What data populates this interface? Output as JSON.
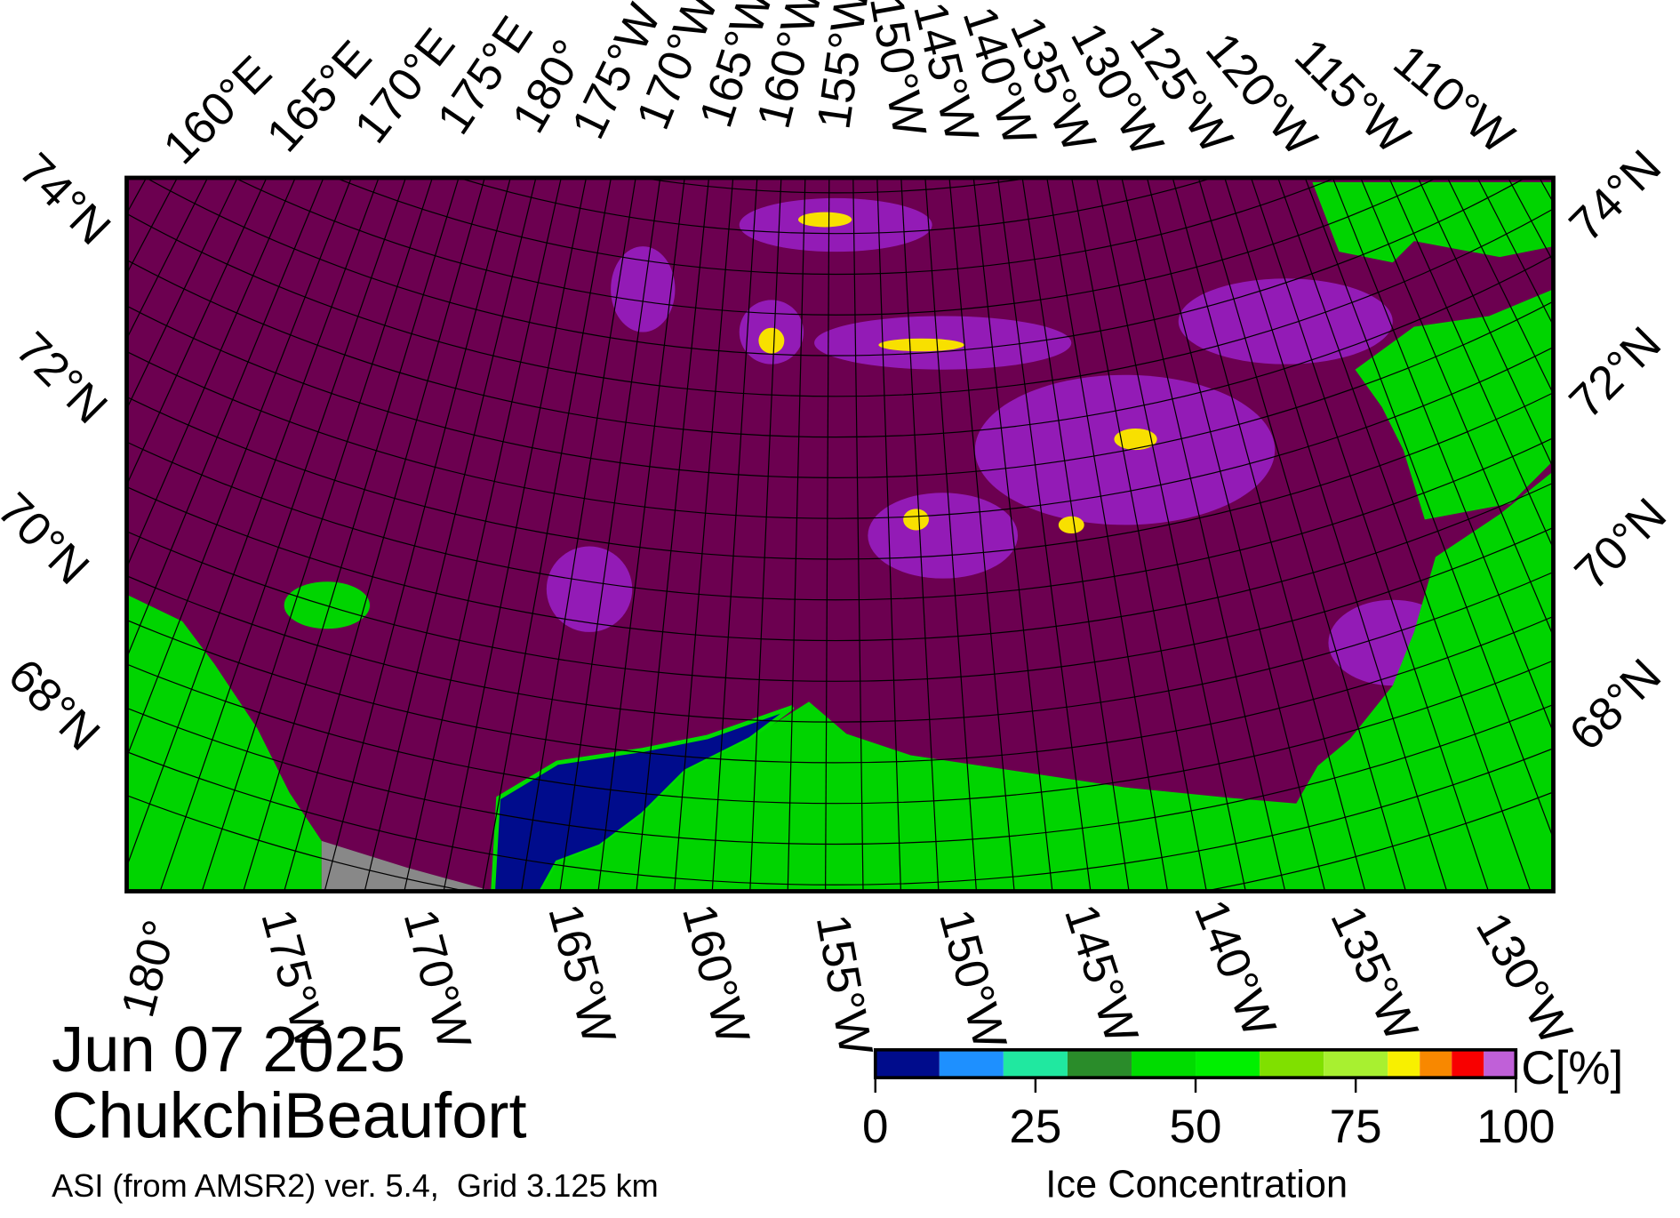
{
  "map": {
    "top_longitude_labels": [
      "160°E",
      "165°E",
      "170°E",
      "175°E",
      "180°",
      "175°W",
      "170°W",
      "165°W",
      "160°W",
      "155°W",
      "150°W",
      "145°W",
      "140°W",
      "135°W",
      "130°W",
      "125°W",
      "120°W",
      "115°W",
      "110°W"
    ],
    "bottom_longitude_labels": [
      "180°",
      "175°W",
      "170°W",
      "165°W",
      "160°W",
      "155°W",
      "150°W",
      "145°W",
      "140°W",
      "135°W",
      "130°W"
    ],
    "left_latitude_labels": [
      "74°N",
      "72°N",
      "70°N",
      "68°N"
    ],
    "right_latitude_labels": [
      "74°N",
      "72°N",
      "70°N",
      "68°N"
    ]
  },
  "caption": {
    "date": "Jun 07 2025",
    "region": "ChukchiBeaufort",
    "source": "ASI (from AMSR2) ver. 5.4,  Grid 3.125 km"
  },
  "chart_data": {
    "type": "colorbar",
    "title": "Ice Concentration",
    "unit_label": "C[%]",
    "bins": [
      0,
      10,
      20,
      30,
      40,
      50,
      60,
      70,
      80,
      85,
      90,
      95,
      100
    ],
    "colors": [
      "#000c8c",
      "#1e90ff",
      "#20e8a0",
      "#2a8c2a",
      "#00dc00",
      "#00f000",
      "#80e000",
      "#a8f030",
      "#f8f000",
      "#f88800",
      "#f80000",
      "#c060d8",
      "#9000d8"
    ],
    "xlim": [
      0,
      100
    ],
    "xticks": [
      0,
      25,
      50,
      75,
      100
    ]
  }
}
